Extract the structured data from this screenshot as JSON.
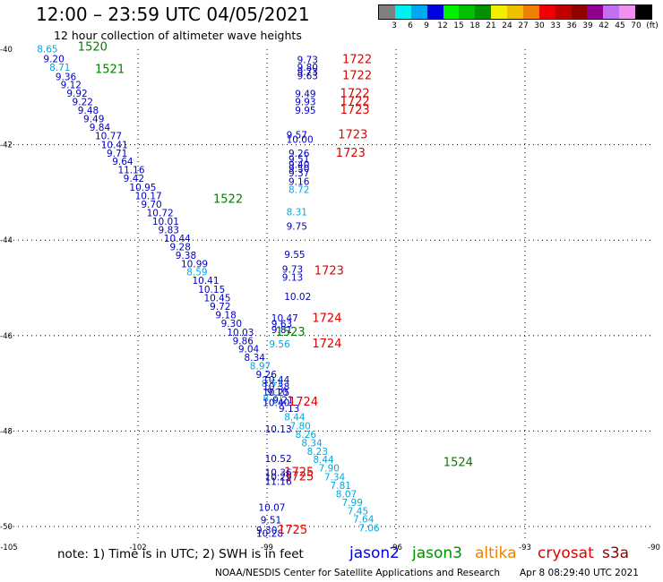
{
  "header": {
    "title": "12:00 – 23:59 UTC 04/05/2021",
    "subtitle": "12 hour collection of altimeter wave heights"
  },
  "legend": {
    "colors": [
      "#808080",
      "#00f0f0",
      "#00a8f0",
      "#0000e0",
      "#00f000",
      "#00c000",
      "#009000",
      "#f0f000",
      "#f0c000",
      "#f08000",
      "#f00000",
      "#c00000",
      "#900000",
      "#900090",
      "#c070f0",
      "#f090f0",
      "#000000"
    ],
    "labels": [
      "3",
      "6",
      "9",
      "12",
      "15",
      "18",
      "21",
      "24",
      "27",
      "30",
      "33",
      "36",
      "39",
      "42",
      "45",
      "70",
      "(ft)"
    ]
  },
  "map": {
    "x_ticks": [
      "-105",
      "-102",
      "-99",
      "-96",
      "-93",
      "-90"
    ],
    "y_ticks": [
      "-40",
      "-42",
      "-44",
      "-46",
      "-48",
      "-50"
    ],
    "points": [
      {
        "v": "8.65",
        "c": "#00a8e0",
        "lon": -104.35,
        "lat": -40.07
      },
      {
        "v": "9.20",
        "c": "#0000c0",
        "lon": -104.2,
        "lat": -40.27
      },
      {
        "v": "8.71",
        "c": "#00a8e0",
        "lon": -104.06,
        "lat": -40.45
      },
      {
        "v": "9.36",
        "c": "#0000c0",
        "lon": -103.92,
        "lat": -40.65
      },
      {
        "v": "9.12",
        "c": "#0000c0",
        "lon": -103.8,
        "lat": -40.82
      },
      {
        "v": "9.92",
        "c": "#0000c0",
        "lon": -103.66,
        "lat": -40.99
      },
      {
        "v": "9.22",
        "c": "#0000c0",
        "lon": -103.53,
        "lat": -41.17
      },
      {
        "v": "9.48",
        "c": "#0000c0",
        "lon": -103.4,
        "lat": -41.35
      },
      {
        "v": "9.49",
        "c": "#0000c0",
        "lon": -103.27,
        "lat": -41.53
      },
      {
        "v": "9.84",
        "c": "#0000c0",
        "lon": -103.13,
        "lat": -41.71
      },
      {
        "v": "10.77",
        "c": "#0000c0",
        "lon": -103.0,
        "lat": -41.89
      },
      {
        "v": "10.41",
        "c": "#0000c0",
        "lon": -102.86,
        "lat": -42.07
      },
      {
        "v": "9.71",
        "c": "#0000c0",
        "lon": -102.73,
        "lat": -42.25
      },
      {
        "v": "9.64",
        "c": "#0000c0",
        "lon": -102.6,
        "lat": -42.42
      },
      {
        "v": "11.16",
        "c": "#0000c0",
        "lon": -102.47,
        "lat": -42.6
      },
      {
        "v": "9.42",
        "c": "#0000c0",
        "lon": -102.34,
        "lat": -42.78
      },
      {
        "v": "10.95",
        "c": "#0000c0",
        "lon": -102.2,
        "lat": -42.96
      },
      {
        "v": "10.17",
        "c": "#0000c0",
        "lon": -102.07,
        "lat": -43.14
      },
      {
        "v": "9.70",
        "c": "#0000c0",
        "lon": -101.93,
        "lat": -43.32
      },
      {
        "v": "10.72",
        "c": "#0000c0",
        "lon": -101.8,
        "lat": -43.5
      },
      {
        "v": "10.01",
        "c": "#0000c0",
        "lon": -101.67,
        "lat": -43.68
      },
      {
        "v": "9.83",
        "c": "#0000c0",
        "lon": -101.53,
        "lat": -43.86
      },
      {
        "v": "10.44",
        "c": "#0000c0",
        "lon": -101.4,
        "lat": -44.03
      },
      {
        "v": "9.28",
        "c": "#0000c0",
        "lon": -101.26,
        "lat": -44.21
      },
      {
        "v": "9.38",
        "c": "#0000c0",
        "lon": -101.13,
        "lat": -44.39
      },
      {
        "v": "10.99",
        "c": "#0000c0",
        "lon": -101.0,
        "lat": -44.57
      },
      {
        "v": "8.59",
        "c": "#00a8e0",
        "lon": -100.87,
        "lat": -44.74
      },
      {
        "v": "10.41",
        "c": "#0000c0",
        "lon": -100.74,
        "lat": -44.92
      },
      {
        "v": "10.15",
        "c": "#0000c0",
        "lon": -100.6,
        "lat": -45.1
      },
      {
        "v": "10.45",
        "c": "#0000c0",
        "lon": -100.47,
        "lat": -45.28
      },
      {
        "v": "9.72",
        "c": "#0000c0",
        "lon": -100.33,
        "lat": -45.46
      },
      {
        "v": "9.18",
        "c": "#0000c0",
        "lon": -100.2,
        "lat": -45.64
      },
      {
        "v": "9.30",
        "c": "#0000c0",
        "lon": -100.07,
        "lat": -45.82
      },
      {
        "v": "10.03",
        "c": "#0000c0",
        "lon": -99.93,
        "lat": -46.0
      },
      {
        "v": "9.86",
        "c": "#0000c0",
        "lon": -99.8,
        "lat": -46.18
      },
      {
        "v": "9.04",
        "c": "#0000c0",
        "lon": -99.67,
        "lat": -46.35
      },
      {
        "v": "8.34",
        "c": "#0000c0",
        "lon": -99.53,
        "lat": -46.53
      },
      {
        "v": "8.97",
        "c": "#00a8e0",
        "lon": -99.4,
        "lat": -46.71
      },
      {
        "v": "9.26",
        "c": "#0000c0",
        "lon": -99.26,
        "lat": -46.89
      },
      {
        "v": "8.51",
        "c": "#00a8e0",
        "lon": -99.13,
        "lat": -47.07
      },
      {
        "v": "9.10",
        "c": "#0000c0",
        "lon": -99.0,
        "lat": -47.25
      },
      {
        "v": "9.21",
        "c": "#0000c0",
        "lon": -98.87,
        "lat": -47.42
      },
      {
        "v": "9.13",
        "c": "#0000c0",
        "lon": -98.73,
        "lat": -47.6
      },
      {
        "v": "8.44",
        "c": "#00a8e0",
        "lon": -98.6,
        "lat": -47.78
      },
      {
        "v": "7.80",
        "c": "#00a8e0",
        "lon": -98.47,
        "lat": -47.96
      },
      {
        "v": "8.26",
        "c": "#00a8e0",
        "lon": -98.34,
        "lat": -48.14
      },
      {
        "v": "8.34",
        "c": "#00a8e0",
        "lon": -98.2,
        "lat": -48.32
      },
      {
        "v": "8.23",
        "c": "#00a8e0",
        "lon": -98.07,
        "lat": -48.5
      },
      {
        "v": "8.44",
        "c": "#00a8e0",
        "lon": -97.93,
        "lat": -48.67
      },
      {
        "v": "7.90",
        "c": "#00a8e0",
        "lon": -97.8,
        "lat": -48.85
      },
      {
        "v": "7.34",
        "c": "#00a8e0",
        "lon": -97.67,
        "lat": -49.03
      },
      {
        "v": "7.81",
        "c": "#00a8e0",
        "lon": -97.53,
        "lat": -49.21
      },
      {
        "v": "8.07",
        "c": "#00a8e0",
        "lon": -97.4,
        "lat": -49.39
      },
      {
        "v": "7.99",
        "c": "#00a8e0",
        "lon": -97.26,
        "lat": -49.57
      },
      {
        "v": "7.45",
        "c": "#00a8e0",
        "lon": -97.13,
        "lat": -49.75
      },
      {
        "v": "7.64",
        "c": "#00a8e0",
        "lon": -97.0,
        "lat": -49.92
      },
      {
        "v": "7.06",
        "c": "#00a8e0",
        "lon": -96.87,
        "lat": -50.1
      },
      {
        "v": "9.73",
        "c": "#0000c0",
        "lon": -98.3,
        "lat": -40.29
      },
      {
        "v": "9.80",
        "c": "#0000c0",
        "lon": -98.3,
        "lat": -40.45
      },
      {
        "v": "9.73",
        "c": "#0000c0",
        "lon": -98.3,
        "lat": -40.54
      },
      {
        "v": "9.63",
        "c": "#0000c0",
        "lon": -98.3,
        "lat": -40.63
      },
      {
        "v": "9.49",
        "c": "#0000c0",
        "lon": -98.35,
        "lat": -41.0
      },
      {
        "v": "9.93",
        "c": "#0000c0",
        "lon": -98.35,
        "lat": -41.17
      },
      {
        "v": "9.95",
        "c": "#0000c0",
        "lon": -98.35,
        "lat": -41.35
      },
      {
        "v": "9.57",
        "c": "#0000c0",
        "lon": -98.55,
        "lat": -41.87
      },
      {
        "v": "10.00",
        "c": "#0000c0",
        "lon": -98.55,
        "lat": -41.96
      },
      {
        "v": "9.26",
        "c": "#0000c0",
        "lon": -98.5,
        "lat": -42.25
      },
      {
        "v": "9.51",
        "c": "#0000c0",
        "lon": -98.5,
        "lat": -42.37
      },
      {
        "v": "9.40",
        "c": "#0000c0",
        "lon": -98.5,
        "lat": -42.49
      },
      {
        "v": "9.50",
        "c": "#0000c0",
        "lon": -98.5,
        "lat": -42.57
      },
      {
        "v": "9.37",
        "c": "#0000c0",
        "lon": -98.5,
        "lat": -42.66
      },
      {
        "v": "9.16",
        "c": "#0000c0",
        "lon": -98.5,
        "lat": -42.84
      },
      {
        "v": "8.72",
        "c": "#00a8e0",
        "lon": -98.5,
        "lat": -43.01
      },
      {
        "v": "8.31",
        "c": "#00a8e0",
        "lon": -98.55,
        "lat": -43.48
      },
      {
        "v": "9.75",
        "c": "#0000c0",
        "lon": -98.55,
        "lat": -43.78
      },
      {
        "v": "9.55",
        "c": "#0000c0",
        "lon": -98.6,
        "lat": -44.37
      },
      {
        "v": "9.73",
        "c": "#0000c0",
        "lon": -98.65,
        "lat": -44.68
      },
      {
        "v": "9.13",
        "c": "#0000c0",
        "lon": -98.65,
        "lat": -44.85
      },
      {
        "v": "10.02",
        "c": "#0000c0",
        "lon": -98.6,
        "lat": -45.25
      },
      {
        "v": "10.47",
        "c": "#0000c0",
        "lon": -98.9,
        "lat": -45.7
      },
      {
        "v": "9.63",
        "c": "#0000c0",
        "lon": -98.9,
        "lat": -45.83
      },
      {
        "v": "9.81",
        "c": "#0000c0",
        "lon": -98.9,
        "lat": -45.95
      },
      {
        "v": "9.56",
        "c": "#00a8e0",
        "lon": -98.95,
        "lat": -46.25
      },
      {
        "v": "10.44",
        "c": "#0000c0",
        "lon": -99.1,
        "lat": -47.0
      },
      {
        "v": "10.38",
        "c": "#0000c0",
        "lon": -99.1,
        "lat": -47.14
      },
      {
        "v": "10.25",
        "c": "#0000c0",
        "lon": -99.1,
        "lat": -47.26
      },
      {
        "v": "8.21",
        "c": "#00a8e0",
        "lon": -99.1,
        "lat": -47.38
      },
      {
        "v": "10.40",
        "c": "#0000c0",
        "lon": -99.1,
        "lat": -47.48
      },
      {
        "v": "10.13",
        "c": "#0000c0",
        "lon": -99.05,
        "lat": -48.03
      },
      {
        "v": "10.52",
        "c": "#0000c0",
        "lon": -99.05,
        "lat": -48.65
      },
      {
        "v": "10.36",
        "c": "#0000c0",
        "lon": -99.05,
        "lat": -48.94
      },
      {
        "v": "10.29",
        "c": "#0000c0",
        "lon": -99.05,
        "lat": -49.03
      },
      {
        "v": "11.16",
        "c": "#0000c0",
        "lon": -99.05,
        "lat": -49.13
      },
      {
        "v": "10.07",
        "c": "#0000c0",
        "lon": -99.2,
        "lat": -49.67
      },
      {
        "v": "9.51",
        "c": "#0000c0",
        "lon": -99.15,
        "lat": -49.93
      },
      {
        "v": "9.30",
        "c": "#0000c0",
        "lon": -99.25,
        "lat": -50.15
      },
      {
        "v": "10.28",
        "c": "#0000c0",
        "lon": -99.25,
        "lat": -50.22
      }
    ],
    "times": [
      {
        "t": "1520",
        "c": "#008000",
        "lon": -103.4,
        "lat": -40.03
      },
      {
        "t": "1521",
        "c": "#008000",
        "lon": -103.0,
        "lat": -40.5
      },
      {
        "t": "1522",
        "c": "#008000",
        "lon": -100.25,
        "lat": -43.22
      },
      {
        "t": "1523",
        "c": "#008000",
        "lon": -98.8,
        "lat": -46.0
      },
      {
        "t": "1524",
        "c": "#008000",
        "lon": -94.9,
        "lat": -48.73
      },
      {
        "t": "1722",
        "c": "#e00000",
        "lon": -97.25,
        "lat": -40.29
      },
      {
        "t": "1722",
        "c": "#e00000",
        "lon": -97.25,
        "lat": -40.63
      },
      {
        "t": "1722",
        "c": "#e00000",
        "lon": -97.3,
        "lat": -41.0
      },
      {
        "t": "1722",
        "c": "#e00000",
        "lon": -97.3,
        "lat": -41.17
      },
      {
        "t": "1723",
        "c": "#e00000",
        "lon": -97.3,
        "lat": -41.35
      },
      {
        "t": "1723",
        "c": "#e00000",
        "lon": -97.35,
        "lat": -41.87
      },
      {
        "t": "1723",
        "c": "#e00000",
        "lon": -97.4,
        "lat": -42.25
      },
      {
        "t": "1723",
        "c": "#e00000",
        "lon": -97.9,
        "lat": -44.72
      },
      {
        "t": "1724",
        "c": "#e00000",
        "lon": -97.95,
        "lat": -45.71
      },
      {
        "t": "1724",
        "c": "#e00000",
        "lon": -97.95,
        "lat": -46.25
      },
      {
        "t": "1724",
        "c": "#e00000",
        "lon": -98.5,
        "lat": -47.47
      },
      {
        "t": "1725",
        "c": "#e00000",
        "lon": -98.6,
        "lat": -48.94
      },
      {
        "t": "1725",
        "c": "#e00000",
        "lon": -98.6,
        "lat": -49.03
      },
      {
        "t": "1725",
        "c": "#e00000",
        "lon": -98.75,
        "lat": -50.15
      }
    ]
  },
  "footer": {
    "note": "note:  1) Time is in UTC;  2) SWH is in feet",
    "satellites": [
      {
        "name": "jason2",
        "color": "#0000e0"
      },
      {
        "name": "jason3",
        "color": "#009000"
      },
      {
        "name": "altika",
        "color": "#f08000"
      },
      {
        "name": "cryosat",
        "color": "#e00000"
      },
      {
        "name": "s3a",
        "color": "#900000"
      }
    ],
    "credit": "NOAA/NESDIS Center for Satellite Applications and Research",
    "timestamp": "Apr  8 08:29:40 UTC 2021"
  }
}
